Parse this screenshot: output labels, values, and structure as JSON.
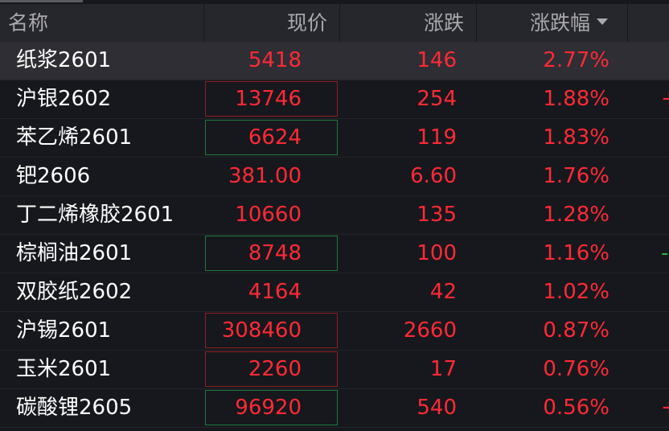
{
  "header": {
    "name": "名称",
    "price": "现价",
    "change": "涨跌",
    "pct": "涨跌幅",
    "sort_icon": "caret-down"
  },
  "colors": {
    "up": "#ff2a36",
    "down": "#2bb34a",
    "background": "#16181d",
    "header_bg": "#26272c"
  },
  "rows": [
    {
      "name": "纸浆2601",
      "price": "5418",
      "change": "146",
      "pct": "2.77%",
      "selected": true,
      "box": "",
      "extra": ""
    },
    {
      "name": "沪银2602",
      "price": "13746",
      "change": "254",
      "pct": "1.88%",
      "box": "red",
      "extra": "+"
    },
    {
      "name": "苯乙烯2601",
      "price": "6624",
      "change": "119",
      "pct": "1.83%",
      "box": "green",
      "extra": ""
    },
    {
      "name": "钯2606",
      "price": "381.00",
      "change": "6.60",
      "pct": "1.76%",
      "box": "",
      "extra": ""
    },
    {
      "name": "丁二烯橡胶2601",
      "price": "10660",
      "change": "135",
      "pct": "1.28%",
      "box": "",
      "extra": ""
    },
    {
      "name": "棕榈油2601",
      "price": "8748",
      "change": "100",
      "pct": "1.16%",
      "box": "green",
      "extra": "-"
    },
    {
      "name": "双胶纸2602",
      "price": "4164",
      "change": "42",
      "pct": "1.02%",
      "box": "",
      "extra": ""
    },
    {
      "name": "沪锡2601",
      "price": "308460",
      "change": "2660",
      "pct": "0.87%",
      "box": "red",
      "extra": ""
    },
    {
      "name": "玉米2601",
      "price": "2260",
      "change": "17",
      "pct": "0.76%",
      "box": "red",
      "extra": ""
    },
    {
      "name": "碳酸锂2605",
      "price": "96920",
      "change": "540",
      "pct": "0.56%",
      "box": "green",
      "extra": "+"
    }
  ]
}
